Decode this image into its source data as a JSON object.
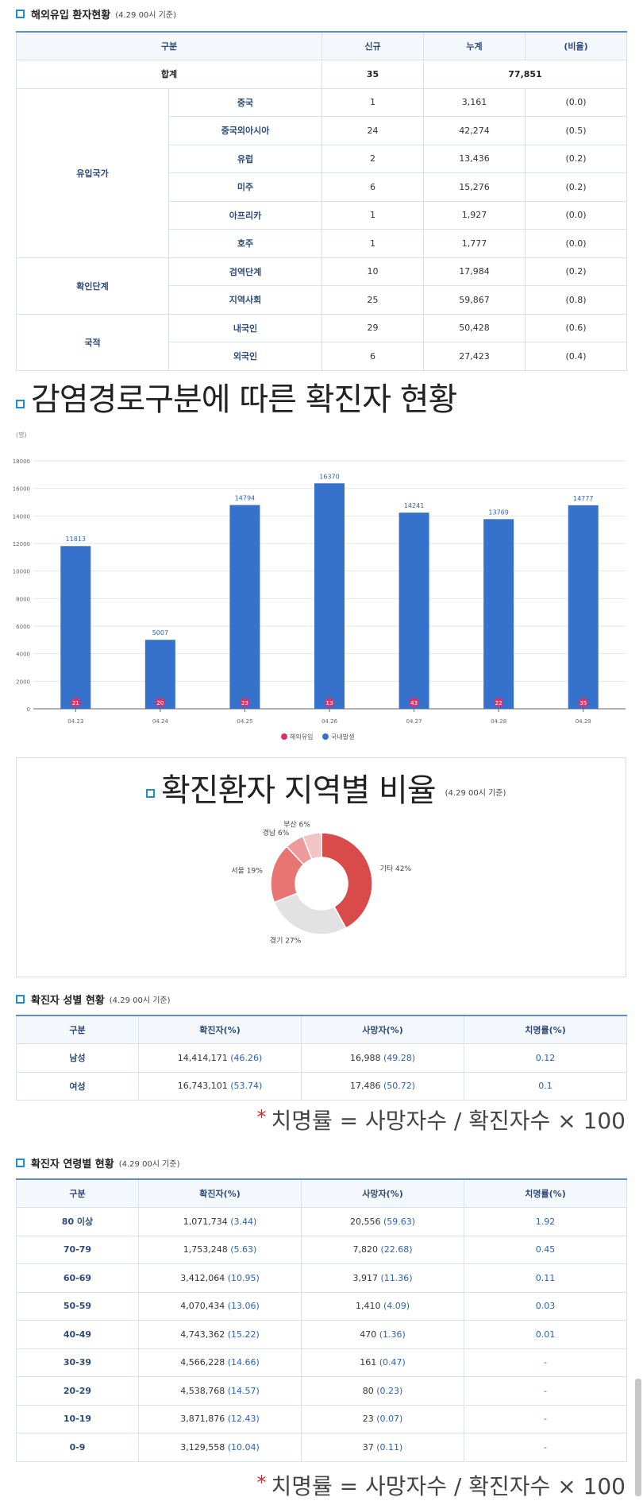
{
  "import": {
    "title": "해외유입 환자현황",
    "date": "(4.29 00시 기준)",
    "headers": [
      "구분",
      "신규",
      "누계",
      "(비율)"
    ],
    "total": {
      "label": "합계",
      "new": "35",
      "cum": "77,851"
    },
    "groups": [
      {
        "name": "유입국가",
        "rows": [
          {
            "label": "중국",
            "new": "1",
            "cum": "3,161",
            "ratio": "(0.0)"
          },
          {
            "label": "중국외아시아",
            "new": "24",
            "cum": "42,274",
            "ratio": "(0.5)"
          },
          {
            "label": "유럽",
            "new": "2",
            "cum": "13,436",
            "ratio": "(0.2)"
          },
          {
            "label": "미주",
            "new": "6",
            "cum": "15,276",
            "ratio": "(0.2)"
          },
          {
            "label": "아프리카",
            "new": "1",
            "cum": "1,927",
            "ratio": "(0.0)"
          },
          {
            "label": "호주",
            "new": "1",
            "cum": "1,777",
            "ratio": "(0.0)"
          }
        ]
      },
      {
        "name": "확인단계",
        "rows": [
          {
            "label": "검역단계",
            "new": "10",
            "cum": "17,984",
            "ratio": "(0.2)"
          },
          {
            "label": "지역사회",
            "new": "25",
            "cum": "59,867",
            "ratio": "(0.8)"
          }
        ]
      },
      {
        "name": "국적",
        "rows": [
          {
            "label": "내국인",
            "new": "29",
            "cum": "50,428",
            "ratio": "(0.6)"
          },
          {
            "label": "외국인",
            "new": "6",
            "cum": "27,423",
            "ratio": "(0.4)"
          }
        ]
      }
    ]
  },
  "route": {
    "title": "감염경로구분에 따른 확진자 현황"
  },
  "chart_data": [
    {
      "type": "bar",
      "ylabel": "(명)",
      "ylim": [
        0,
        18000
      ],
      "yticks": [
        0,
        2000,
        4000,
        6000,
        8000,
        10000,
        12000,
        14000,
        16000,
        18000
      ],
      "categories": [
        "04.23",
        "04.24",
        "04.25",
        "04.26",
        "04.27",
        "04.28",
        "04.29"
      ],
      "series": [
        {
          "name": "해외유입",
          "color": "#d6336c",
          "values": [
            21,
            20,
            23,
            13,
            43,
            22,
            35
          ]
        },
        {
          "name": "국내발생",
          "color": "#3672cc",
          "values": [
            11813,
            5007,
            14794,
            16370,
            14241,
            13769,
            14777
          ]
        }
      ],
      "legend": "bottom",
      "grid": true
    },
    {
      "type": "pie",
      "title": "확진환자 지역별 비율",
      "date": "(4.29 00시 기준)",
      "slices": [
        {
          "label": "기타",
          "value": 42,
          "color": "#d94b4a"
        },
        {
          "label": "경기",
          "value": 27,
          "color": "#e2e2e2"
        },
        {
          "label": "서울",
          "value": 19,
          "color": "#e87474"
        },
        {
          "label": "경남",
          "value": 6,
          "color": "#ef9a9a"
        },
        {
          "label": "부산",
          "value": 6,
          "color": "#f2c4c4"
        }
      ]
    }
  ],
  "gender": {
    "title": "확진자 성별 현황",
    "date": "(4.29 00시 기준)",
    "headers": [
      "구분",
      "확진자(%)",
      "사망자(%)",
      "치명률(%)"
    ],
    "rows": [
      {
        "label": "남성",
        "conf": "14,414,171",
        "conf_pct": "(46.26)",
        "death": "16,988",
        "death_pct": "(49.28)",
        "rate": "0.12"
      },
      {
        "label": "여성",
        "conf": "16,743,101",
        "conf_pct": "(53.74)",
        "death": "17,486",
        "death_pct": "(50.72)",
        "rate": "0.1"
      }
    ],
    "formula": "치명률 = 사망자수 / 확진자수 × 100"
  },
  "age": {
    "title": "확진자 연령별 현황",
    "date": "(4.29 00시 기준)",
    "headers": [
      "구분",
      "확진자(%)",
      "사망자(%)",
      "치명률(%)"
    ],
    "rows": [
      {
        "label": "80 이상",
        "conf": "1,071,734",
        "conf_pct": "(3.44)",
        "death": "20,556",
        "death_pct": "(59.63)",
        "rate": "1.92"
      },
      {
        "label": "70-79",
        "conf": "1,753,248",
        "conf_pct": "(5.63)",
        "death": "7,820",
        "death_pct": "(22.68)",
        "rate": "0.45"
      },
      {
        "label": "60-69",
        "conf": "3,412,064",
        "conf_pct": "(10.95)",
        "death": "3,917",
        "death_pct": "(11.36)",
        "rate": "0.11"
      },
      {
        "label": "50-59",
        "conf": "4,070,434",
        "conf_pct": "(13.06)",
        "death": "1,410",
        "death_pct": "(4.09)",
        "rate": "0.03"
      },
      {
        "label": "40-49",
        "conf": "4,743,362",
        "conf_pct": "(15.22)",
        "death": "470",
        "death_pct": "(1.36)",
        "rate": "0.01"
      },
      {
        "label": "30-39",
        "conf": "4,566,228",
        "conf_pct": "(14.66)",
        "death": "161",
        "death_pct": "(0.47)",
        "rate": "-"
      },
      {
        "label": "20-29",
        "conf": "4,538,768",
        "conf_pct": "(14.57)",
        "death": "80",
        "death_pct": "(0.23)",
        "rate": "-"
      },
      {
        "label": "10-19",
        "conf": "3,871,876",
        "conf_pct": "(12.43)",
        "death": "23",
        "death_pct": "(0.07)",
        "rate": "-"
      },
      {
        "label": "0-9",
        "conf": "3,129,558",
        "conf_pct": "(10.04)",
        "death": "37",
        "death_pct": "(0.11)",
        "rate": "-"
      }
    ],
    "formula": "치명률 = 사망자수 / 확진자수 × 100"
  },
  "colors": {
    "accent": "#1f8fd1",
    "header_text": "#2d4b7a",
    "bar": "#3672cc",
    "import_dot": "#d6336c"
  }
}
